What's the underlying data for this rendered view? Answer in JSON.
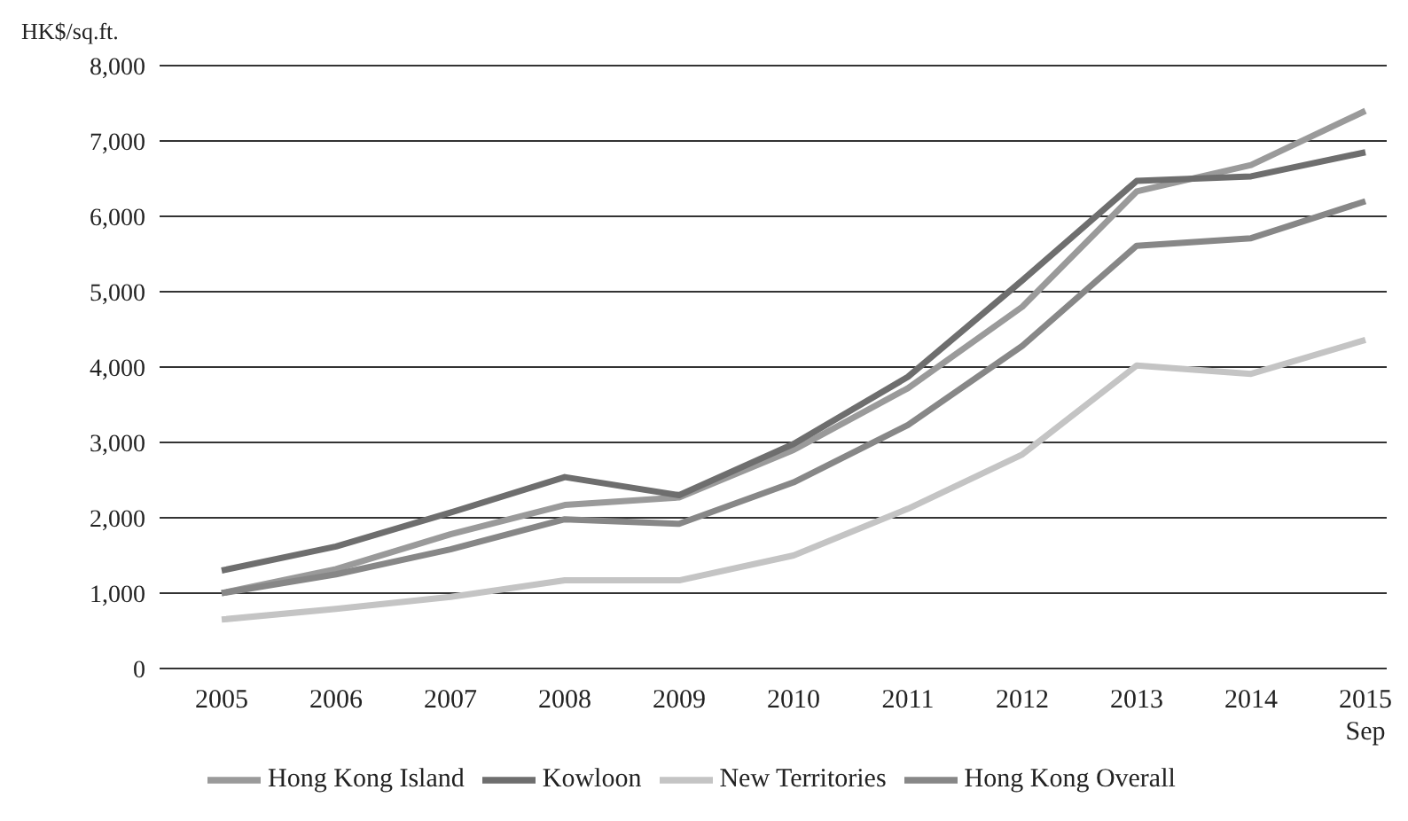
{
  "chart_data": {
    "type": "line",
    "ylabel": "HK$/sq.ft.",
    "categories": [
      "2005",
      "2006",
      "2007",
      "2008",
      "2009",
      "2010",
      "2011",
      "2012",
      "2013",
      "2014",
      "2015\nSep"
    ],
    "series": [
      {
        "name": "Hong Kong Island",
        "color": "#9a9a9a",
        "values": [
          1000,
          1320,
          1780,
          2170,
          2270,
          2900,
          3720,
          4800,
          6330,
          6680,
          7400
        ]
      },
      {
        "name": "Kowloon",
        "color": "#6e6e6e",
        "values": [
          1300,
          1620,
          2070,
          2540,
          2300,
          2980,
          3870,
          5150,
          6470,
          6530,
          6850
        ]
      },
      {
        "name": "New Territories",
        "color": "#c4c4c4",
        "values": [
          650,
          790,
          950,
          1170,
          1170,
          1500,
          2120,
          2840,
          4020,
          3910,
          4360
        ]
      },
      {
        "name": "Hong Kong Overall",
        "color": "#878787",
        "values": [
          1000,
          1250,
          1580,
          1980,
          1920,
          2470,
          3230,
          4280,
          5610,
          5710,
          6200
        ]
      }
    ],
    "ylim": [
      0,
      8000
    ],
    "yticks": [
      0,
      {
        "value": 1000,
        "label": "1,000"
      },
      {
        "value": 2000,
        "label": "2,000"
      },
      {
        "value": 3000,
        "label": "3,000"
      },
      {
        "value": 4000,
        "label": "4,000"
      },
      {
        "value": 5000,
        "label": "5,000"
      },
      {
        "value": 6000,
        "label": "6,000"
      },
      {
        "value": 7000,
        "label": "7,000"
      },
      {
        "value": 8000,
        "label": "8,000"
      }
    ],
    "grid": "y",
    "legend": "bottom",
    "marker": "none",
    "line_style": "solid"
  }
}
